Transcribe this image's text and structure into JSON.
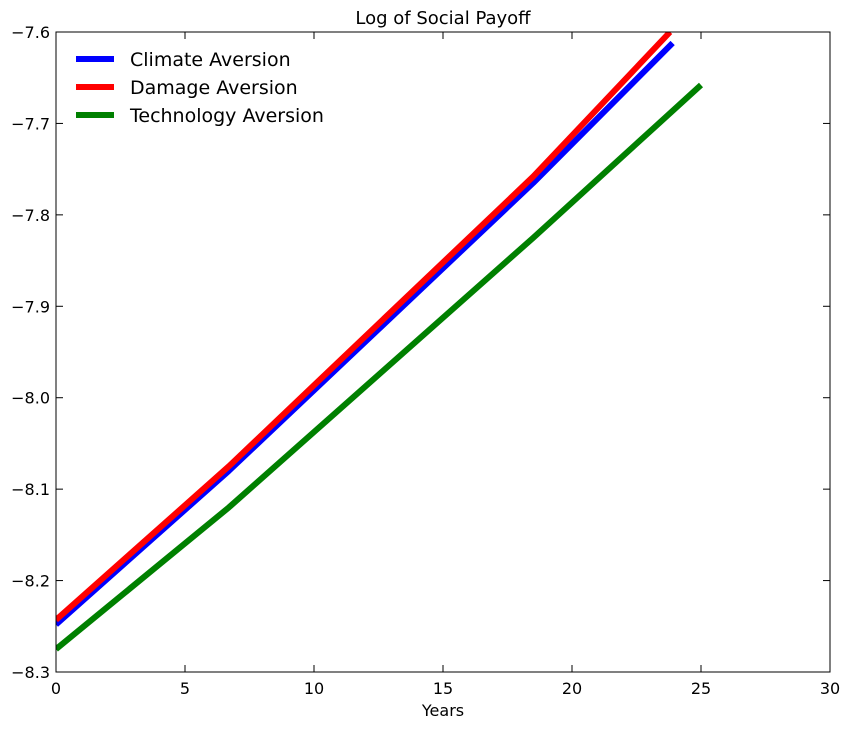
{
  "chart_data": {
    "type": "line",
    "title": "Log of Social Payoff",
    "xlabel": "Years",
    "ylabel": "",
    "xlim": [
      0,
      30
    ],
    "ylim": [
      -8.3,
      -7.6
    ],
    "xticks": [
      0,
      5,
      10,
      15,
      20,
      25,
      30
    ],
    "yticks": [
      -8.3,
      -8.2,
      -8.1,
      -8.0,
      -7.9,
      -7.8,
      -7.7,
      -7.6
    ],
    "xtick_labels": [
      "0",
      "5",
      "10",
      "15",
      "20",
      "25",
      "30"
    ],
    "ytick_labels": [
      "−8.3",
      "−8.2",
      "−8.1",
      "−8.0",
      "−7.9",
      "−7.8",
      "−7.7",
      "−7.6"
    ],
    "grid": false,
    "legend_position": "top-left",
    "series": [
      {
        "name": "Climate Aversion",
        "color": "#0000ff",
        "x": [
          0,
          6.7,
          18.5,
          23.9
        ],
        "y": [
          -8.248,
          -8.08,
          -7.765,
          -7.612
        ]
      },
      {
        "name": "Damage Aversion",
        "color": "#ff0000",
        "x": [
          0,
          6.7,
          18.5,
          23.8
        ],
        "y": [
          -8.243,
          -8.075,
          -7.758,
          -7.6
        ]
      },
      {
        "name": "Technology Aversion",
        "color": "#008000",
        "x": [
          0,
          6.7,
          18.5,
          25.0
        ],
        "y": [
          -8.275,
          -8.12,
          -7.825,
          -7.658
        ]
      }
    ]
  }
}
